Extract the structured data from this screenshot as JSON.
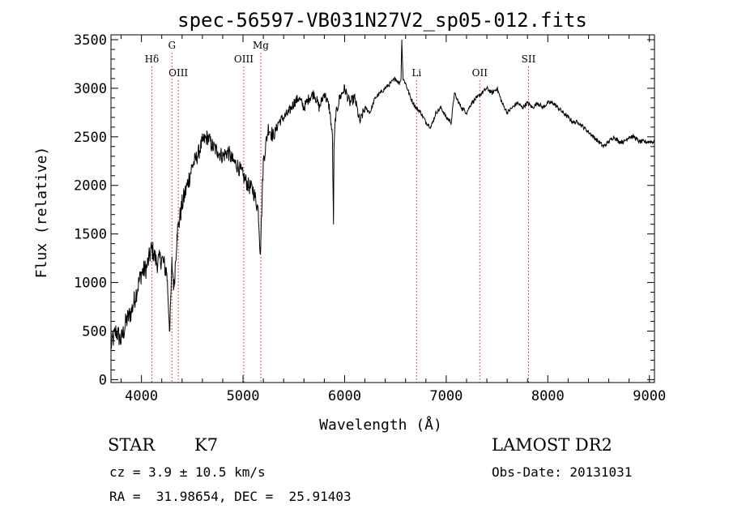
{
  "chart_data": {
    "type": "line",
    "title": "spec-56597-VB031N27V2_sp05-012.fits",
    "xlabel": "Wavelength (Å)",
    "ylabel": "Flux (relative)",
    "xlim": [
      3700,
      9050
    ],
    "ylim": [
      -30,
      3550
    ],
    "x_ticks": [
      4000,
      5000,
      6000,
      7000,
      8000,
      9000
    ],
    "x_tick_labels": [
      "4000",
      "5000",
      "6000",
      "7000",
      "8000",
      "9000"
    ],
    "y_ticks": [
      0,
      500,
      1000,
      1500,
      2000,
      2500,
      3000,
      3500
    ],
    "y_tick_labels": [
      "0",
      "500",
      "1000",
      "1500",
      "2000",
      "2500",
      "3000",
      "3500"
    ],
    "grid": false,
    "series": [
      {
        "x": [
          3700,
          3750,
          3800,
          3850,
          3900,
          3950,
          4000,
          4050,
          4100,
          4120,
          4150,
          4200,
          4250,
          4280,
          4300,
          4320,
          4350,
          4400,
          4450,
          4500,
          4550,
          4600,
          4650,
          4700,
          4750,
          4800,
          4850,
          4900,
          4950,
          5000,
          5050,
          5100,
          5150,
          5170,
          5200,
          5250,
          5300,
          5350,
          5400,
          5450,
          5500,
          5550,
          5600,
          5650,
          5700,
          5750,
          5800,
          5850,
          5880,
          5890,
          5896,
          5910,
          5950,
          6000,
          6050,
          6100,
          6150,
          6200,
          6250,
          6300,
          6350,
          6400,
          6450,
          6500,
          6540,
          6555,
          6563,
          6575,
          6600,
          6650,
          6700,
          6750,
          6800,
          6850,
          6900,
          6950,
          7000,
          7050,
          7080,
          7100,
          7150,
          7200,
          7250,
          7300,
          7350,
          7400,
          7450,
          7500,
          7550,
          7600,
          7650,
          7700,
          7750,
          7800,
          7850,
          7900,
          7950,
          8000,
          8050,
          8100,
          8150,
          8200,
          8250,
          8300,
          8350,
          8400,
          8450,
          8500,
          8550,
          8600,
          8650,
          8700,
          8750,
          8800,
          8850,
          8900,
          8950,
          9000,
          9050
        ],
        "values": [
          350,
          500,
          400,
          600,
          700,
          900,
          1100,
          1150,
          1350,
          1300,
          1200,
          1250,
          1100,
          500,
          1200,
          950,
          1500,
          1800,
          2000,
          2200,
          2300,
          2450,
          2500,
          2400,
          2350,
          2300,
          2350,
          2250,
          2200,
          2100,
          2000,
          1950,
          1750,
          1300,
          2250,
          2600,
          2500,
          2650,
          2700,
          2750,
          2850,
          2900,
          2800,
          2900,
          2950,
          2800,
          2950,
          2800,
          2500,
          1600,
          2400,
          2700,
          2900,
          3000,
          2850,
          2900,
          2650,
          2800,
          2750,
          2900,
          2950,
          3000,
          3050,
          3100,
          3050,
          3100,
          3500,
          3100,
          3050,
          2900,
          2800,
          2750,
          2650,
          2600,
          2750,
          2800,
          2700,
          2650,
          2950,
          2900,
          2800,
          2750,
          2850,
          2900,
          2950,
          3000,
          2950,
          3000,
          2850,
          2750,
          2800,
          2850,
          2800,
          2850,
          2800,
          2850,
          2800,
          2850,
          2850,
          2800,
          2750,
          2700,
          2650,
          2650,
          2600,
          2550,
          2500,
          2450,
          2400,
          2450,
          2500,
          2450,
          2450,
          2500,
          2500,
          2450,
          2450,
          2450,
          2450
        ]
      }
    ],
    "lines": [
      {
        "label": "Hδ",
        "x": 4102,
        "row": 2
      },
      {
        "label": "G",
        "x": 4300,
        "row": 1
      },
      {
        "label": "OIII",
        "x": 4363,
        "row": 3
      },
      {
        "label": "OIII",
        "x": 5007,
        "row": 2
      },
      {
        "label": "Mg",
        "x": 5175,
        "row": 1
      },
      {
        "label": "Li",
        "x": 6708,
        "row": 3
      },
      {
        "label": "OII",
        "x": 7330,
        "row": 3
      },
      {
        "label": "SII",
        "x": 7810,
        "row": 2
      }
    ],
    "line_color": "#cc2222"
  },
  "info": {
    "class_label": "STAR",
    "subclass_label": "K7",
    "cz_text": "cz = 3.9 ± 10.5 km/s",
    "radec_text": "RA =  31.98654, DEC =  25.91403",
    "survey_text": "LAMOST DR2",
    "obsdate_text": "Obs-Date: 20131031"
  }
}
